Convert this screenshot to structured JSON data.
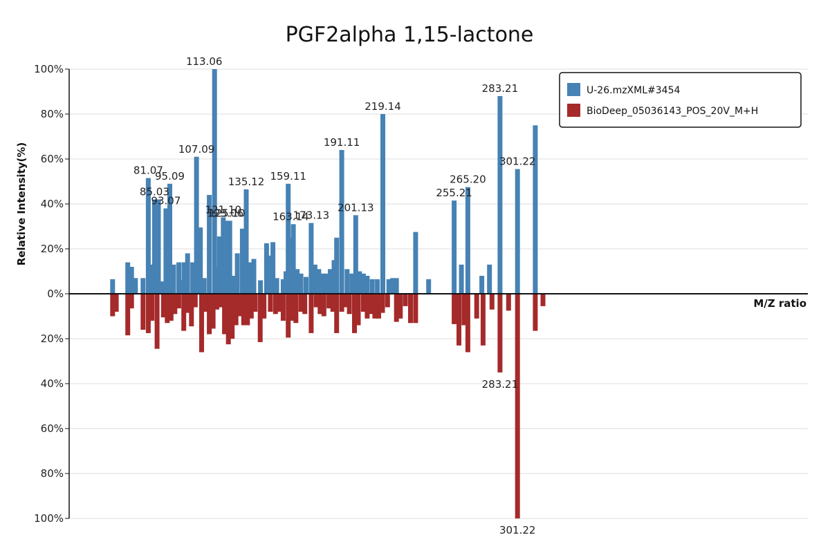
{
  "chart_data": {
    "type": "bar",
    "title": "PGF2alpha 1,15-lactone",
    "xlabel": "M/Z ratio",
    "ylabel": "Relative Intensity(%)",
    "xlim": [
      50,
      340
    ],
    "ylim_top": [
      0,
      100
    ],
    "ylim_bottom": [
      0,
      100
    ],
    "y_ticks": [
      "0%",
      "20%",
      "40%",
      "60%",
      "80%",
      "100%"
    ],
    "legend_position": "top-right",
    "grid": true,
    "colors": {
      "top": "#4682b4",
      "bottom": "#a52a2a"
    },
    "series": [
      {
        "name": "U-26.mzXML#3454",
        "direction": "up",
        "peaks": [
          {
            "mz": 67.05,
            "i": 6.5
          },
          {
            "mz": 73.0,
            "i": 14
          },
          {
            "mz": 74.5,
            "i": 12
          },
          {
            "mz": 76.0,
            "i": 7
          },
          {
            "mz": 79.0,
            "i": 7
          },
          {
            "mz": 81.07,
            "i": 51.5
          },
          {
            "mz": 82.5,
            "i": 13
          },
          {
            "mz": 83.5,
            "i": 42
          },
          {
            "mz": 85.03,
            "i": 42
          },
          {
            "mz": 86.5,
            "i": 5.5
          },
          {
            "mz": 88.0,
            "i": 38
          },
          {
            "mz": 89.5,
            "i": 49
          },
          {
            "mz": 91.0,
            "i": 13
          },
          {
            "mz": 93.07,
            "i": 14
          },
          {
            "mz": 95.09,
            "i": 14
          },
          {
            "mz": 94.5,
            "i": 6
          },
          {
            "mz": 96.5,
            "i": 18
          },
          {
            "mz": 98.5,
            "i": 14
          },
          {
            "mz": 100.0,
            "i": 61
          },
          {
            "mz": 101.5,
            "i": 29.5
          },
          {
            "mz": 103.0,
            "i": 7
          },
          {
            "mz": 107.09,
            "i": 100
          },
          {
            "mz": 105.0,
            "i": 44
          },
          {
            "mz": 107.5,
            "i": 12
          },
          {
            "mz": 109.0,
            "i": 25.5
          },
          {
            "mz": 110.5,
            "i": 34
          },
          {
            "mz": 112.0,
            "i": 32.5
          },
          {
            "mz": 113.06,
            "i": 32.5
          },
          {
            "mz": 114.5,
            "i": 8
          },
          {
            "mz": 116.0,
            "i": 18
          },
          {
            "mz": 118.0,
            "i": 29
          },
          {
            "mz": 119.5,
            "i": 46.5
          },
          {
            "mz": 121.1,
            "i": 14
          },
          {
            "mz": 122.5,
            "i": 15.5
          },
          {
            "mz": 125.1,
            "i": 6
          },
          {
            "mz": 127.5,
            "i": 22.5
          },
          {
            "mz": 129.0,
            "i": 17
          },
          {
            "mz": 130.0,
            "i": 23
          },
          {
            "mz": 131.5,
            "i": 7
          },
          {
            "mz": 134.0,
            "i": 6.5
          },
          {
            "mz": 135.12,
            "i": 10
          },
          {
            "mz": 136.0,
            "i": 49
          },
          {
            "mz": 137.0,
            "i": 25
          },
          {
            "mz": 138.0,
            "i": 31
          },
          {
            "mz": 139.5,
            "i": 11
          },
          {
            "mz": 141.0,
            "i": 9
          },
          {
            "mz": 143.0,
            "i": 7.5
          },
          {
            "mz": 145.0,
            "i": 31.5
          },
          {
            "mz": 146.5,
            "i": 13
          },
          {
            "mz": 148.0,
            "i": 11
          },
          {
            "mz": 149.5,
            "i": 9
          },
          {
            "mz": 151.0,
            "i": 9
          },
          {
            "mz": 152.5,
            "i": 11
          },
          {
            "mz": 154.0,
            "i": 15
          },
          {
            "mz": 155.0,
            "i": 25
          },
          {
            "mz": 157.0,
            "i": 64
          },
          {
            "mz": 159.11,
            "i": 11
          },
          {
            "mz": 161.0,
            "i": 9
          },
          {
            "mz": 162.5,
            "i": 35
          },
          {
            "mz": 164.0,
            "i": 10
          },
          {
            "mz": 165.5,
            "i": 9
          },
          {
            "mz": 167.0,
            "i": 8
          },
          {
            "mz": 169.0,
            "i": 6.5
          },
          {
            "mz": 171.0,
            "i": 6.5
          },
          {
            "mz": 173.13,
            "i": 80
          },
          {
            "mz": 175.5,
            "i": 6.5
          },
          {
            "mz": 177.0,
            "i": 7
          },
          {
            "mz": 178.5,
            "i": 7
          },
          {
            "mz": 186.0,
            "i": 27.5
          },
          {
            "mz": 191.11,
            "i": 6.5
          },
          {
            "mz": 201.13,
            "i": 41.5
          },
          {
            "mz": 204.0,
            "i": 13
          },
          {
            "mz": 206.5,
            "i": 47.5
          },
          {
            "mz": 212.0,
            "i": 8
          },
          {
            "mz": 215.0,
            "i": 13
          },
          {
            "mz": 219.14,
            "i": 88
          },
          {
            "mz": 226.0,
            "i": 55.5
          },
          {
            "mz": 233.0,
            "i": 75
          }
        ]
      },
      {
        "name": "BioDeep_05036143_POS_20V_M+H",
        "direction": "down",
        "peaks": [
          {
            "mz": 67.05,
            "i": 10
          },
          {
            "mz": 68.5,
            "i": 8
          },
          {
            "mz": 73.0,
            "i": 18.5
          },
          {
            "mz": 74.5,
            "i": 6.5
          },
          {
            "mz": 79.0,
            "i": 16
          },
          {
            "mz": 81.07,
            "i": 17.5
          },
          {
            "mz": 82.5,
            "i": 12
          },
          {
            "mz": 84.5,
            "i": 24.5
          },
          {
            "mz": 87.0,
            "i": 10.5
          },
          {
            "mz": 88.5,
            "i": 13
          },
          {
            "mz": 90.0,
            "i": 12
          },
          {
            "mz": 91.5,
            "i": 9
          },
          {
            "mz": 93.0,
            "i": 6.5
          },
          {
            "mz": 95.0,
            "i": 16.5
          },
          {
            "mz": 96.5,
            "i": 8.5
          },
          {
            "mz": 98.0,
            "i": 14.5
          },
          {
            "mz": 99.5,
            "i": 6
          },
          {
            "mz": 102.0,
            "i": 26
          },
          {
            "mz": 103.5,
            "i": 8
          },
          {
            "mz": 105.0,
            "i": 18
          },
          {
            "mz": 106.5,
            "i": 15.5
          },
          {
            "mz": 108.0,
            "i": 7
          },
          {
            "mz": 109.5,
            "i": 6
          },
          {
            "mz": 111.0,
            "i": 18
          },
          {
            "mz": 112.5,
            "i": 22.5
          },
          {
            "mz": 114.0,
            "i": 20
          },
          {
            "mz": 115.5,
            "i": 14
          },
          {
            "mz": 117.0,
            "i": 10
          },
          {
            "mz": 118.5,
            "i": 14
          },
          {
            "mz": 120.0,
            "i": 14
          },
          {
            "mz": 121.5,
            "i": 11
          },
          {
            "mz": 123.0,
            "i": 8
          },
          {
            "mz": 125.0,
            "i": 21.5
          },
          {
            "mz": 126.5,
            "i": 11
          },
          {
            "mz": 129.0,
            "i": 8
          },
          {
            "mz": 131.0,
            "i": 9
          },
          {
            "mz": 132.5,
            "i": 8
          },
          {
            "mz": 134.0,
            "i": 12
          },
          {
            "mz": 136.0,
            "i": 19.5
          },
          {
            "mz": 137.5,
            "i": 12
          },
          {
            "mz": 139.0,
            "i": 13
          },
          {
            "mz": 141.0,
            "i": 8
          },
          {
            "mz": 142.5,
            "i": 9
          },
          {
            "mz": 145.0,
            "i": 17.5
          },
          {
            "mz": 147.0,
            "i": 6
          },
          {
            "mz": 148.5,
            "i": 9
          },
          {
            "mz": 150.0,
            "i": 10
          },
          {
            "mz": 152.0,
            "i": 6.5
          },
          {
            "mz": 153.5,
            "i": 8
          },
          {
            "mz": 155.0,
            "i": 17.5
          },
          {
            "mz": 157.0,
            "i": 8
          },
          {
            "mz": 158.5,
            "i": 6
          },
          {
            "mz": 160.0,
            "i": 9
          },
          {
            "mz": 162.0,
            "i": 17.5
          },
          {
            "mz": 163.5,
            "i": 14
          },
          {
            "mz": 165.5,
            "i": 8
          },
          {
            "mz": 167.0,
            "i": 11
          },
          {
            "mz": 168.5,
            "i": 9
          },
          {
            "mz": 170.0,
            "i": 11
          },
          {
            "mz": 171.5,
            "i": 11
          },
          {
            "mz": 173.0,
            "i": 8.5
          },
          {
            "mz": 175.0,
            "i": 6
          },
          {
            "mz": 178.5,
            "i": 12.5
          },
          {
            "mz": 180.0,
            "i": 11
          },
          {
            "mz": 182.0,
            "i": 5.5
          },
          {
            "mz": 184.0,
            "i": 13
          },
          {
            "mz": 186.0,
            "i": 13
          },
          {
            "mz": 201.13,
            "i": 13.5
          },
          {
            "mz": 203.0,
            "i": 23
          },
          {
            "mz": 205.0,
            "i": 14
          },
          {
            "mz": 206.5,
            "i": 26
          },
          {
            "mz": 210.0,
            "i": 11
          },
          {
            "mz": 212.5,
            "i": 23
          },
          {
            "mz": 216.0,
            "i": 7
          },
          {
            "mz": 219.14,
            "i": 35
          },
          {
            "mz": 222.5,
            "i": 7.5
          },
          {
            "mz": 226.0,
            "i": 100
          },
          {
            "mz": 233.0,
            "i": 16.5
          },
          {
            "mz": 236.0,
            "i": 5.5
          }
        ]
      }
    ],
    "peak_labels": [
      {
        "text": "81.07",
        "mz": 81.07,
        "i": 51.5,
        "series": "up"
      },
      {
        "text": "85.03",
        "mz": 83.5,
        "i": 42,
        "series": "up"
      },
      {
        "text": "93.07",
        "mz": 88.0,
        "i": 38,
        "series": "up"
      },
      {
        "text": "95.09",
        "mz": 89.5,
        "i": 49,
        "series": "up"
      },
      {
        "text": "107.09",
        "mz": 100.0,
        "i": 61,
        "series": "up"
      },
      {
        "text": "113.06",
        "mz": 103.0,
        "i": 100,
        "series": "up"
      },
      {
        "text": "121.10",
        "mz": 110.5,
        "i": 34,
        "series": "up"
      },
      {
        "text": "125.10",
        "mz": 112.0,
        "i": 32.5,
        "series": "up"
      },
      {
        "text": "123.06",
        "mz": 111.3,
        "i": 32.5,
        "series": "up"
      },
      {
        "text": "135.12",
        "mz": 119.5,
        "i": 46.5,
        "series": "up"
      },
      {
        "text": "159.11",
        "mz": 136.0,
        "i": 49,
        "series": "up"
      },
      {
        "text": "163.14",
        "mz": 137.0,
        "i": 31,
        "series": "up"
      },
      {
        "text": "173.13",
        "mz": 145.0,
        "i": 31.5,
        "series": "up"
      },
      {
        "text": "191.11",
        "mz": 157.0,
        "i": 64,
        "series": "up"
      },
      {
        "text": "201.13",
        "mz": 162.5,
        "i": 35,
        "series": "up"
      },
      {
        "text": "219.14",
        "mz": 173.13,
        "i": 80,
        "series": "up"
      },
      {
        "text": "255.21",
        "mz": 201.13,
        "i": 41.5,
        "series": "up"
      },
      {
        "text": "265.20",
        "mz": 206.5,
        "i": 47.5,
        "series": "up"
      },
      {
        "text": "283.21",
        "mz": 219.14,
        "i": 88,
        "series": "up"
      },
      {
        "text": "301.22",
        "mz": 226.0,
        "i": 55.5,
        "series": "up"
      },
      {
        "text": "283.21",
        "mz": 219.14,
        "i": 35,
        "series": "down"
      },
      {
        "text": "301.22",
        "mz": 226.0,
        "i": 100,
        "series": "down"
      }
    ]
  }
}
